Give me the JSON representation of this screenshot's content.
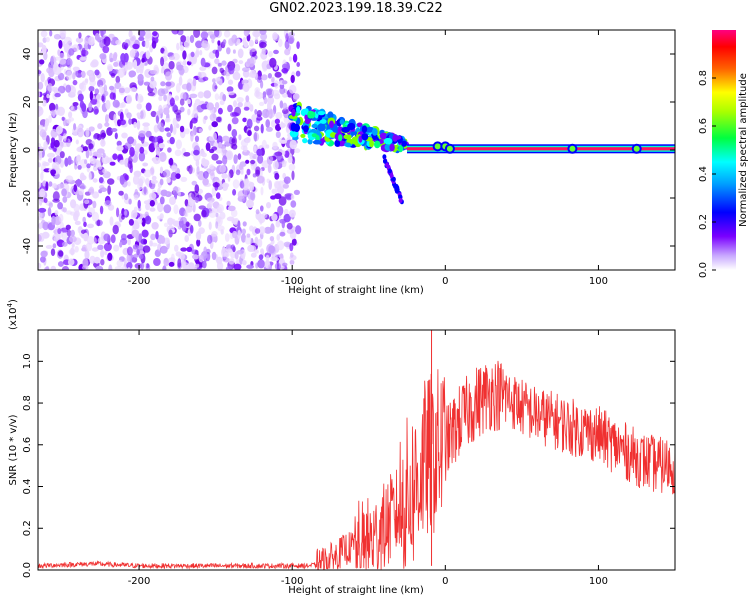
{
  "title": "GN02.2023.199.18.39.C22",
  "chart_data": [
    {
      "type": "heatmap",
      "xlabel": "Height of straight line (km)",
      "ylabel": "Frequency (Hz)",
      "xlim": [
        -266,
        150
      ],
      "ylim": [
        -50,
        50
      ],
      "x_ticks": [
        -200,
        -100,
        0,
        100
      ],
      "y_ticks": [
        -40,
        -20,
        0,
        20,
        40
      ],
      "colorbar": {
        "label": "Normalized spectral amplitude",
        "range": [
          0.0,
          1.0
        ],
        "ticks": [
          0.0,
          0.2,
          0.4,
          0.6,
          0.8
        ],
        "colors": [
          "#ffffff",
          "#6a00ff",
          "#0000ff",
          "#00ffff",
          "#00ff00",
          "#ffff00",
          "#ff0000",
          "#ff0080"
        ]
      },
      "noise_region": {
        "x_range": [
          -266,
          -96
        ],
        "y_range": [
          -50,
          50
        ]
      },
      "features": [
        {
          "name": "descending-band",
          "x_start": -100,
          "x_end": -25,
          "freq_start": 12,
          "freq_end": 2
        },
        {
          "name": "branch",
          "x_start": -40,
          "x_end": -28,
          "freq_start": -3,
          "freq_end": -22
        },
        {
          "name": "zero-line",
          "x_start": -25,
          "x_end": 150,
          "freq": 0.5
        }
      ]
    },
    {
      "type": "line",
      "xlabel": "Height of straight line (km)",
      "ylabel": "SNR (10 * v/v)",
      "y_multiplier": "(x10",
      "y_multiplier_exp": "4",
      "y_multiplier_close": ")",
      "xlim": [
        -266,
        150
      ],
      "ylim": [
        0,
        1.15
      ],
      "x_ticks": [
        -200,
        -100,
        0,
        100
      ],
      "y_ticks": [
        0.0,
        0.2,
        0.4,
        0.6,
        0.8,
        1.0
      ],
      "y_tick_labels": [
        "0.0",
        "0.2",
        "0.4",
        "0.6",
        "0.8",
        "1.0"
      ],
      "line_color": "#f03030",
      "series": [
        {
          "x": [
            -266,
            -230,
            -200,
            -150,
            -100,
            -90,
            -80,
            -72,
            -65,
            -55,
            -45,
            -40,
            -35,
            -28,
            -20,
            -15,
            -10,
            0,
            10,
            20,
            30,
            40,
            50,
            60,
            70,
            80,
            90,
            100,
            110,
            120,
            130,
            140,
            150
          ],
          "y": [
            0.02,
            0.03,
            0.02,
            0.02,
            0.02,
            0.02,
            0.03,
            0.06,
            0.1,
            0.12,
            0.15,
            0.2,
            0.25,
            0.3,
            0.4,
            0.5,
            0.55,
            0.6,
            0.72,
            0.8,
            0.85,
            0.83,
            0.78,
            0.74,
            0.72,
            0.69,
            0.67,
            0.65,
            0.6,
            0.56,
            0.52,
            0.5,
            0.5
          ]
        }
      ]
    }
  ]
}
